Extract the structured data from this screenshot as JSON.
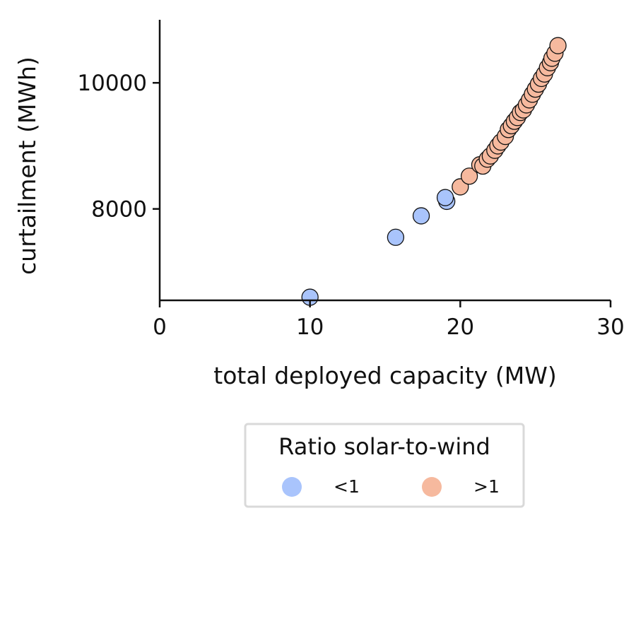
{
  "chart_data": {
    "type": "scatter",
    "title": "",
    "xlabel": "total deployed capacity (MW)",
    "ylabel": "curtailment (MWh)",
    "xlim": [
      0,
      30
    ],
    "ylim": [
      6550,
      11000
    ],
    "xticks": [
      0,
      10,
      20,
      30
    ],
    "xtick_labels": [
      "0",
      "10",
      "20",
      "30"
    ],
    "yticks": [
      8000,
      10000
    ],
    "ytick_labels": [
      "8000",
      "10000"
    ],
    "grid": false,
    "legend": {
      "title": "Ratio solar-to-wind",
      "placement": "below",
      "columns": 2
    },
    "series": [
      {
        "name": "<1",
        "color": "#a9c4fc",
        "points": [
          [
            10.0,
            6600
          ],
          [
            15.7,
            7550
          ],
          [
            17.4,
            7890
          ],
          [
            19.1,
            8120
          ],
          [
            19.0,
            8180
          ]
        ]
      },
      {
        "name": ">1",
        "color": "#f6b99e",
        "points": [
          [
            20.0,
            8350
          ],
          [
            20.6,
            8520
          ],
          [
            21.3,
            8700
          ],
          [
            21.5,
            8680
          ],
          [
            21.8,
            8790
          ],
          [
            22.0,
            8840
          ],
          [
            22.3,
            8930
          ],
          [
            22.5,
            9000
          ],
          [
            22.7,
            9060
          ],
          [
            23.0,
            9150
          ],
          [
            23.2,
            9260
          ],
          [
            23.4,
            9320
          ],
          [
            23.6,
            9390
          ],
          [
            23.8,
            9450
          ],
          [
            24.0,
            9530
          ],
          [
            24.2,
            9570
          ],
          [
            24.4,
            9650
          ],
          [
            24.6,
            9730
          ],
          [
            24.8,
            9820
          ],
          [
            25.0,
            9900
          ],
          [
            25.2,
            9980
          ],
          [
            25.4,
            10070
          ],
          [
            25.6,
            10140
          ],
          [
            25.8,
            10240
          ],
          [
            26.0,
            10320
          ],
          [
            26.1,
            10390
          ],
          [
            26.3,
            10470
          ],
          [
            26.5,
            10590
          ]
        ]
      }
    ]
  }
}
